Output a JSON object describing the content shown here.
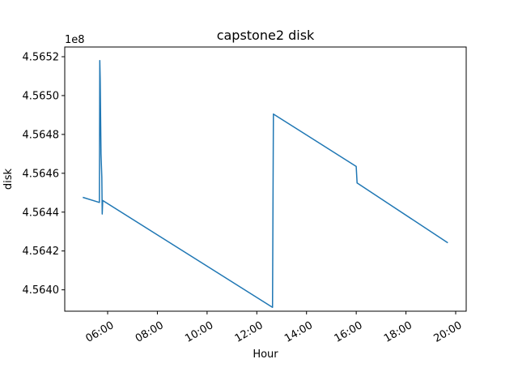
{
  "chart_data": {
    "type": "line",
    "title": "capstone2 disk",
    "xlabel": "Hour",
    "ylabel": "disk",
    "y_offset_label": "1e8",
    "x_ticks": [
      "06:00",
      "08:00",
      "10:00",
      "12:00",
      "14:00",
      "16:00",
      "18:00",
      "20:00"
    ],
    "y_ticks": [
      "4.5640",
      "4.5642",
      "4.5644",
      "4.5646",
      "4.5648",
      "4.5650",
      "4.5652"
    ],
    "xlim": [
      "05:30",
      "20:30"
    ],
    "ylim": [
      456389000,
      456525000
    ],
    "grid": false,
    "line_color": "#1f77b4",
    "series": [
      {
        "points": [
          [
            "05:00",
            456447600
          ],
          [
            "05:40",
            456445000
          ],
          [
            "05:41",
            456518000
          ],
          [
            "05:42",
            456508000
          ],
          [
            "05:44",
            456470000
          ],
          [
            "05:46",
            456458000
          ],
          [
            "05:47",
            456439000
          ],
          [
            "05:48",
            456446000
          ],
          [
            "12:38",
            456391000
          ],
          [
            "12:40",
            456490500
          ],
          [
            "16:00",
            456463500
          ],
          [
            "16:02",
            456455000
          ],
          [
            "19:41",
            456424200
          ]
        ]
      }
    ]
  }
}
